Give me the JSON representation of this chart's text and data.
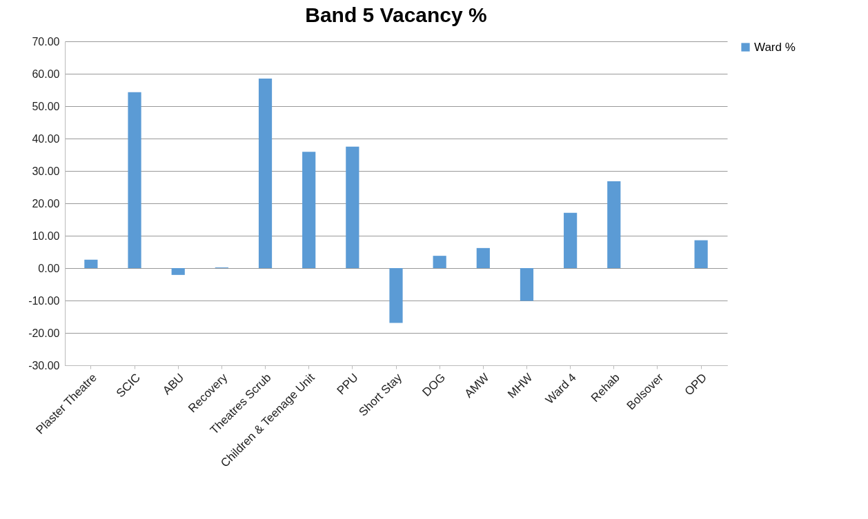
{
  "chart_data": {
    "type": "bar",
    "title": "Band 5 Vacancy %",
    "categories": [
      "Plaster Theatre",
      "SCIC",
      "ABU",
      "Recovery",
      "Theatres Scrub",
      "Children & Teenage Unit",
      "PPU",
      "Short Stay",
      "DOG",
      "AMW",
      "MHW",
      "Ward 4",
      "Rehab",
      "Bolsover",
      "OPD"
    ],
    "series": [
      {
        "name": "Ward %",
        "color": "#5b9bd5",
        "values": [
          2.6,
          54.3,
          -2.1,
          0.2,
          58.5,
          35.9,
          37.5,
          -16.9,
          3.8,
          6.2,
          -10.1,
          17.1,
          26.8,
          0,
          8.6
        ]
      }
    ],
    "ylim": [
      -30,
      70
    ],
    "yticks": [
      {
        "value": -30,
        "label": "-30.00"
      },
      {
        "value": -20,
        "label": "-20.00"
      },
      {
        "value": -10,
        "label": "-10.00"
      },
      {
        "value": 0,
        "label": "0.00"
      },
      {
        "value": 10,
        "label": "10.00"
      },
      {
        "value": 20,
        "label": "20.00"
      },
      {
        "value": 30,
        "label": "30.00"
      },
      {
        "value": 40,
        "label": "40.00"
      },
      {
        "value": 50,
        "label": "50.00"
      },
      {
        "value": 60,
        "label": "60.00"
      },
      {
        "value": 70,
        "label": "70.00"
      }
    ],
    "grid": "y",
    "legend": "right"
  }
}
